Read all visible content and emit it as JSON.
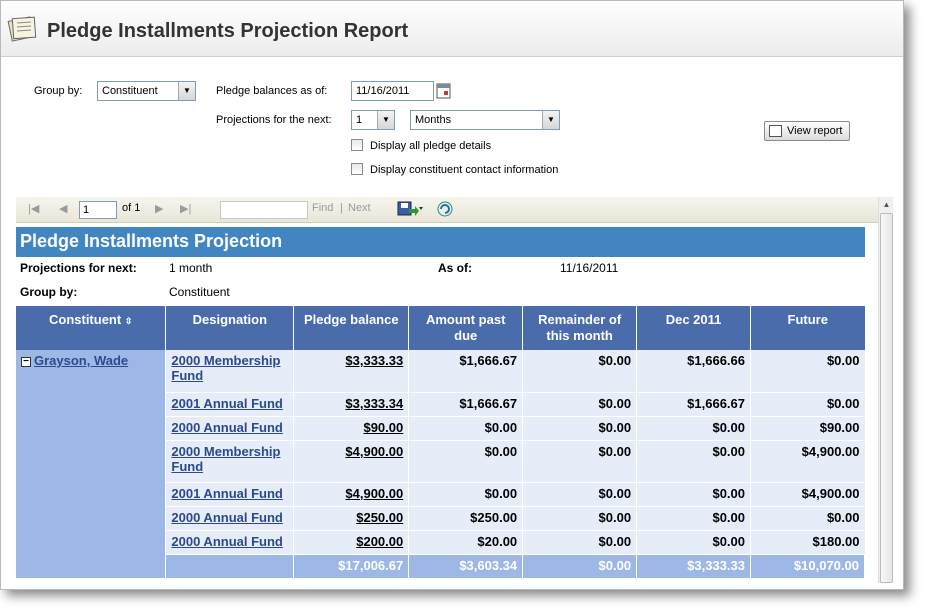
{
  "header": {
    "title": "Pledge Installments Projection Report"
  },
  "params": {
    "group_by_label": "Group by:",
    "group_by_value": "Constituent",
    "balances_label": "Pledge balances as of:",
    "balances_value": "11/16/2011",
    "projections_label": "Projections for the next:",
    "projections_count": "1",
    "projections_unit": "Months",
    "display_details": "Display all pledge details",
    "display_contact": "Display constituent contact information",
    "view_report": "View report"
  },
  "toolbar": {
    "page": "1",
    "of": "of 1",
    "find": "Find",
    "sep": "|",
    "next": "Next"
  },
  "report": {
    "title": "Pledge Installments Projection",
    "proj_label": "Projections for next:",
    "proj_value": "1 month",
    "asof_label": "As of:",
    "asof_value": "11/16/2011",
    "group_label": "Group by:",
    "group_value": "Constituent",
    "columns": [
      "Constituent",
      "Designation",
      "Pledge balance",
      "Amount past due",
      "Remainder of this month",
      "Dec 2011",
      "Future"
    ],
    "constituent": "Grayson, Wade",
    "rows": [
      {
        "designation": "2000 Membership Fund",
        "balance": "$3,333.33",
        "past_due": "$1,666.67",
        "remainder": "$0.00",
        "dec": "$1,666.66",
        "future": "$0.00"
      },
      {
        "designation": "2001 Annual Fund",
        "balance": "$3,333.34",
        "past_due": "$1,666.67",
        "remainder": "$0.00",
        "dec": "$1,666.67",
        "future": "$0.00"
      },
      {
        "designation": "2000 Annual Fund",
        "balance": "$90.00",
        "past_due": "$0.00",
        "remainder": "$0.00",
        "dec": "$0.00",
        "future": "$90.00"
      },
      {
        "designation": "2000 Membership Fund",
        "balance": "$4,900.00",
        "past_due": "$0.00",
        "remainder": "$0.00",
        "dec": "$0.00",
        "future": "$4,900.00"
      },
      {
        "designation": "2001 Annual Fund",
        "balance": "$4,900.00",
        "past_due": "$0.00",
        "remainder": "$0.00",
        "dec": "$0.00",
        "future": "$4,900.00"
      },
      {
        "designation": "2000 Annual Fund",
        "balance": "$250.00",
        "past_due": "$250.00",
        "remainder": "$0.00",
        "dec": "$0.00",
        "future": "$0.00"
      },
      {
        "designation": "2000 Annual Fund",
        "balance": "$200.00",
        "past_due": "$20.00",
        "remainder": "$0.00",
        "dec": "$0.00",
        "future": "$180.00"
      }
    ],
    "totals": {
      "balance": "$17,006.67",
      "past_due": "$3,603.34",
      "remainder": "$0.00",
      "dec": "$3,333.33",
      "future": "$10,070.00"
    }
  }
}
